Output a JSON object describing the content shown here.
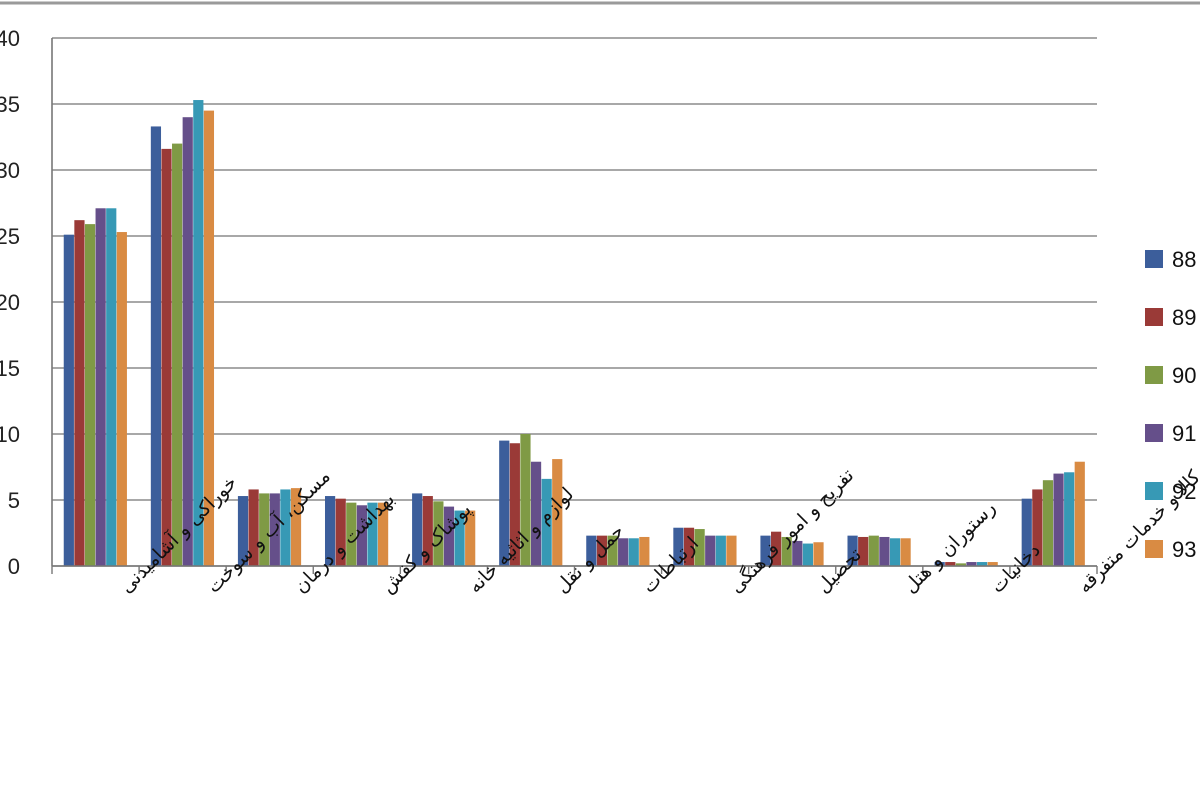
{
  "chart_data": {
    "type": "bar",
    "title": "",
    "xlabel": "",
    "ylabel": "",
    "ylim": [
      0,
      40
    ],
    "yticks": [
      "0",
      "5",
      "10",
      "15",
      "20",
      "25",
      "30",
      "35",
      "40"
    ],
    "grid": true,
    "legend_position": "right",
    "categories": [
      "خوراکی و آشامیدنی",
      "مسکن، آب و سوخت",
      "بهداشت و درمان",
      "پوشاک و کفش",
      "لوازم و اثاثیه خانه",
      "حمل و نقل",
      "ارتباطات",
      "تفریح و امور فرهنگی",
      "تحصیل",
      "رستوران و هتل",
      "دخانیات",
      "کالا و خدمات متفرقه"
    ],
    "series": [
      {
        "name": "88",
        "color": "#3c5e9b",
        "values": [
          25.1,
          33.3,
          5.3,
          5.3,
          5.5,
          9.5,
          2.3,
          2.9,
          2.3,
          2.3,
          0.3,
          5.1
        ]
      },
      {
        "name": "89",
        "color": "#9a3a37",
        "values": [
          26.2,
          31.6,
          5.8,
          5.1,
          5.3,
          9.3,
          2.3,
          2.9,
          2.6,
          2.2,
          0.3,
          5.8
        ]
      },
      {
        "name": "90",
        "color": "#7f9a45",
        "values": [
          25.9,
          32.0,
          5.5,
          4.8,
          4.9,
          10.0,
          2.3,
          2.8,
          2.2,
          2.3,
          0.2,
          6.5
        ]
      },
      {
        "name": "91",
        "color": "#654f8a",
        "values": [
          27.1,
          34.0,
          5.5,
          4.6,
          4.5,
          7.9,
          2.1,
          2.3,
          1.9,
          2.2,
          0.3,
          7.0
        ]
      },
      {
        "name": "92",
        "color": "#3799b5",
        "values": [
          27.1,
          35.3,
          5.8,
          4.8,
          4.2,
          6.6,
          2.1,
          2.3,
          1.7,
          2.1,
          0.3,
          7.1
        ]
      },
      {
        "name": "93",
        "color": "#d98b43",
        "values": [
          25.3,
          34.5,
          5.9,
          4.8,
          4.2,
          8.1,
          2.2,
          2.3,
          1.8,
          2.1,
          0.3,
          7.9
        ]
      }
    ]
  }
}
